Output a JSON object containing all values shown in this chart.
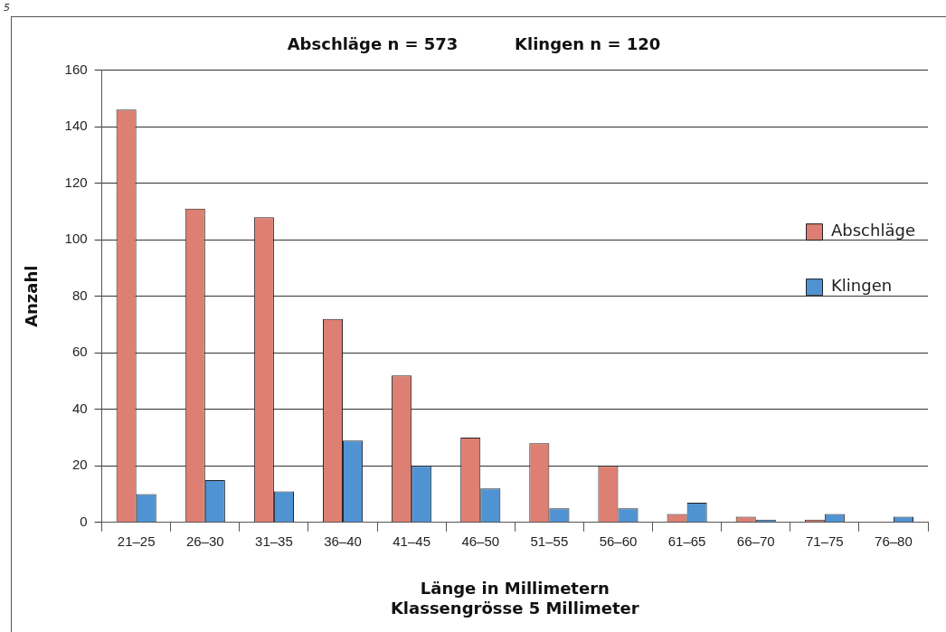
{
  "chart_data": {
    "type": "bar",
    "title": "Abschläge n = 573          Klingen n = 120",
    "xlabel": "Länge in Millimetern\nKlassengrösse 5 Millimeter",
    "ylabel": "Anzahl",
    "categories": [
      "21–25",
      "26–30",
      "31–35",
      "36–40",
      "41–45",
      "46–50",
      "51–55",
      "56–60",
      "61–65",
      "66–70",
      "71–75",
      "76–80"
    ],
    "series": [
      {
        "name": "Abschläge",
        "color": "#dd7f72",
        "values": [
          146,
          111,
          108,
          72,
          52,
          30,
          28,
          20,
          3,
          2,
          1,
          0
        ]
      },
      {
        "name": "Klingen",
        "color": "#4f93d3",
        "values": [
          10,
          15,
          11,
          29,
          20,
          12,
          5,
          5,
          7,
          1,
          3,
          2
        ]
      }
    ],
    "ylim": [
      0,
      160
    ],
    "yticks": [
      0,
      20,
      40,
      60,
      80,
      100,
      120,
      140,
      160
    ],
    "grid": "y",
    "legend": "right",
    "annotations": [
      "5"
    ]
  }
}
